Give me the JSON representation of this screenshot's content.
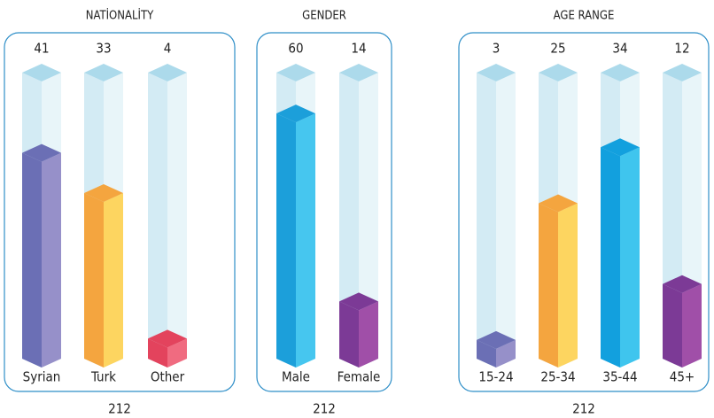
{
  "chart_data": [
    {
      "type": "bar",
      "title": "NATİONALİTY",
      "categories": [
        "Syrian",
        "Turk",
        "Other"
      ],
      "values": [
        41,
        33,
        4
      ],
      "total": 212,
      "ylim": [
        0,
        57
      ],
      "colors": [
        [
          "#6b6fb5",
          "#9690c9"
        ],
        [
          "#f4a53f",
          "#fdd560"
        ],
        [
          "#e3435d",
          "#f06b80"
        ]
      ]
    },
    {
      "type": "bar",
      "title": "GENDER",
      "categories": [
        "Male",
        "Female"
      ],
      "values": [
        60,
        14
      ],
      "total": 212,
      "ylim": [
        0,
        70
      ],
      "colors": [
        [
          "#1c9fda",
          "#46c6ef"
        ],
        [
          "#7c3a96",
          "#a04fa8"
        ]
      ]
    },
    {
      "type": "bar",
      "title": "AGE RANGE",
      "categories": [
        "15-24",
        "25-34",
        "35-44",
        "45+"
      ],
      "values": [
        3,
        25,
        34,
        12
      ],
      "total": 212,
      "ylim": [
        0,
        46
      ],
      "colors": [
        [
          "#6b6fb5",
          "#9690c9"
        ],
        [
          "#f4a53f",
          "#fdd560"
        ],
        [
          "#12a0de",
          "#3fc5ee"
        ],
        [
          "#7c3a96",
          "#a04fa8"
        ]
      ]
    }
  ]
}
